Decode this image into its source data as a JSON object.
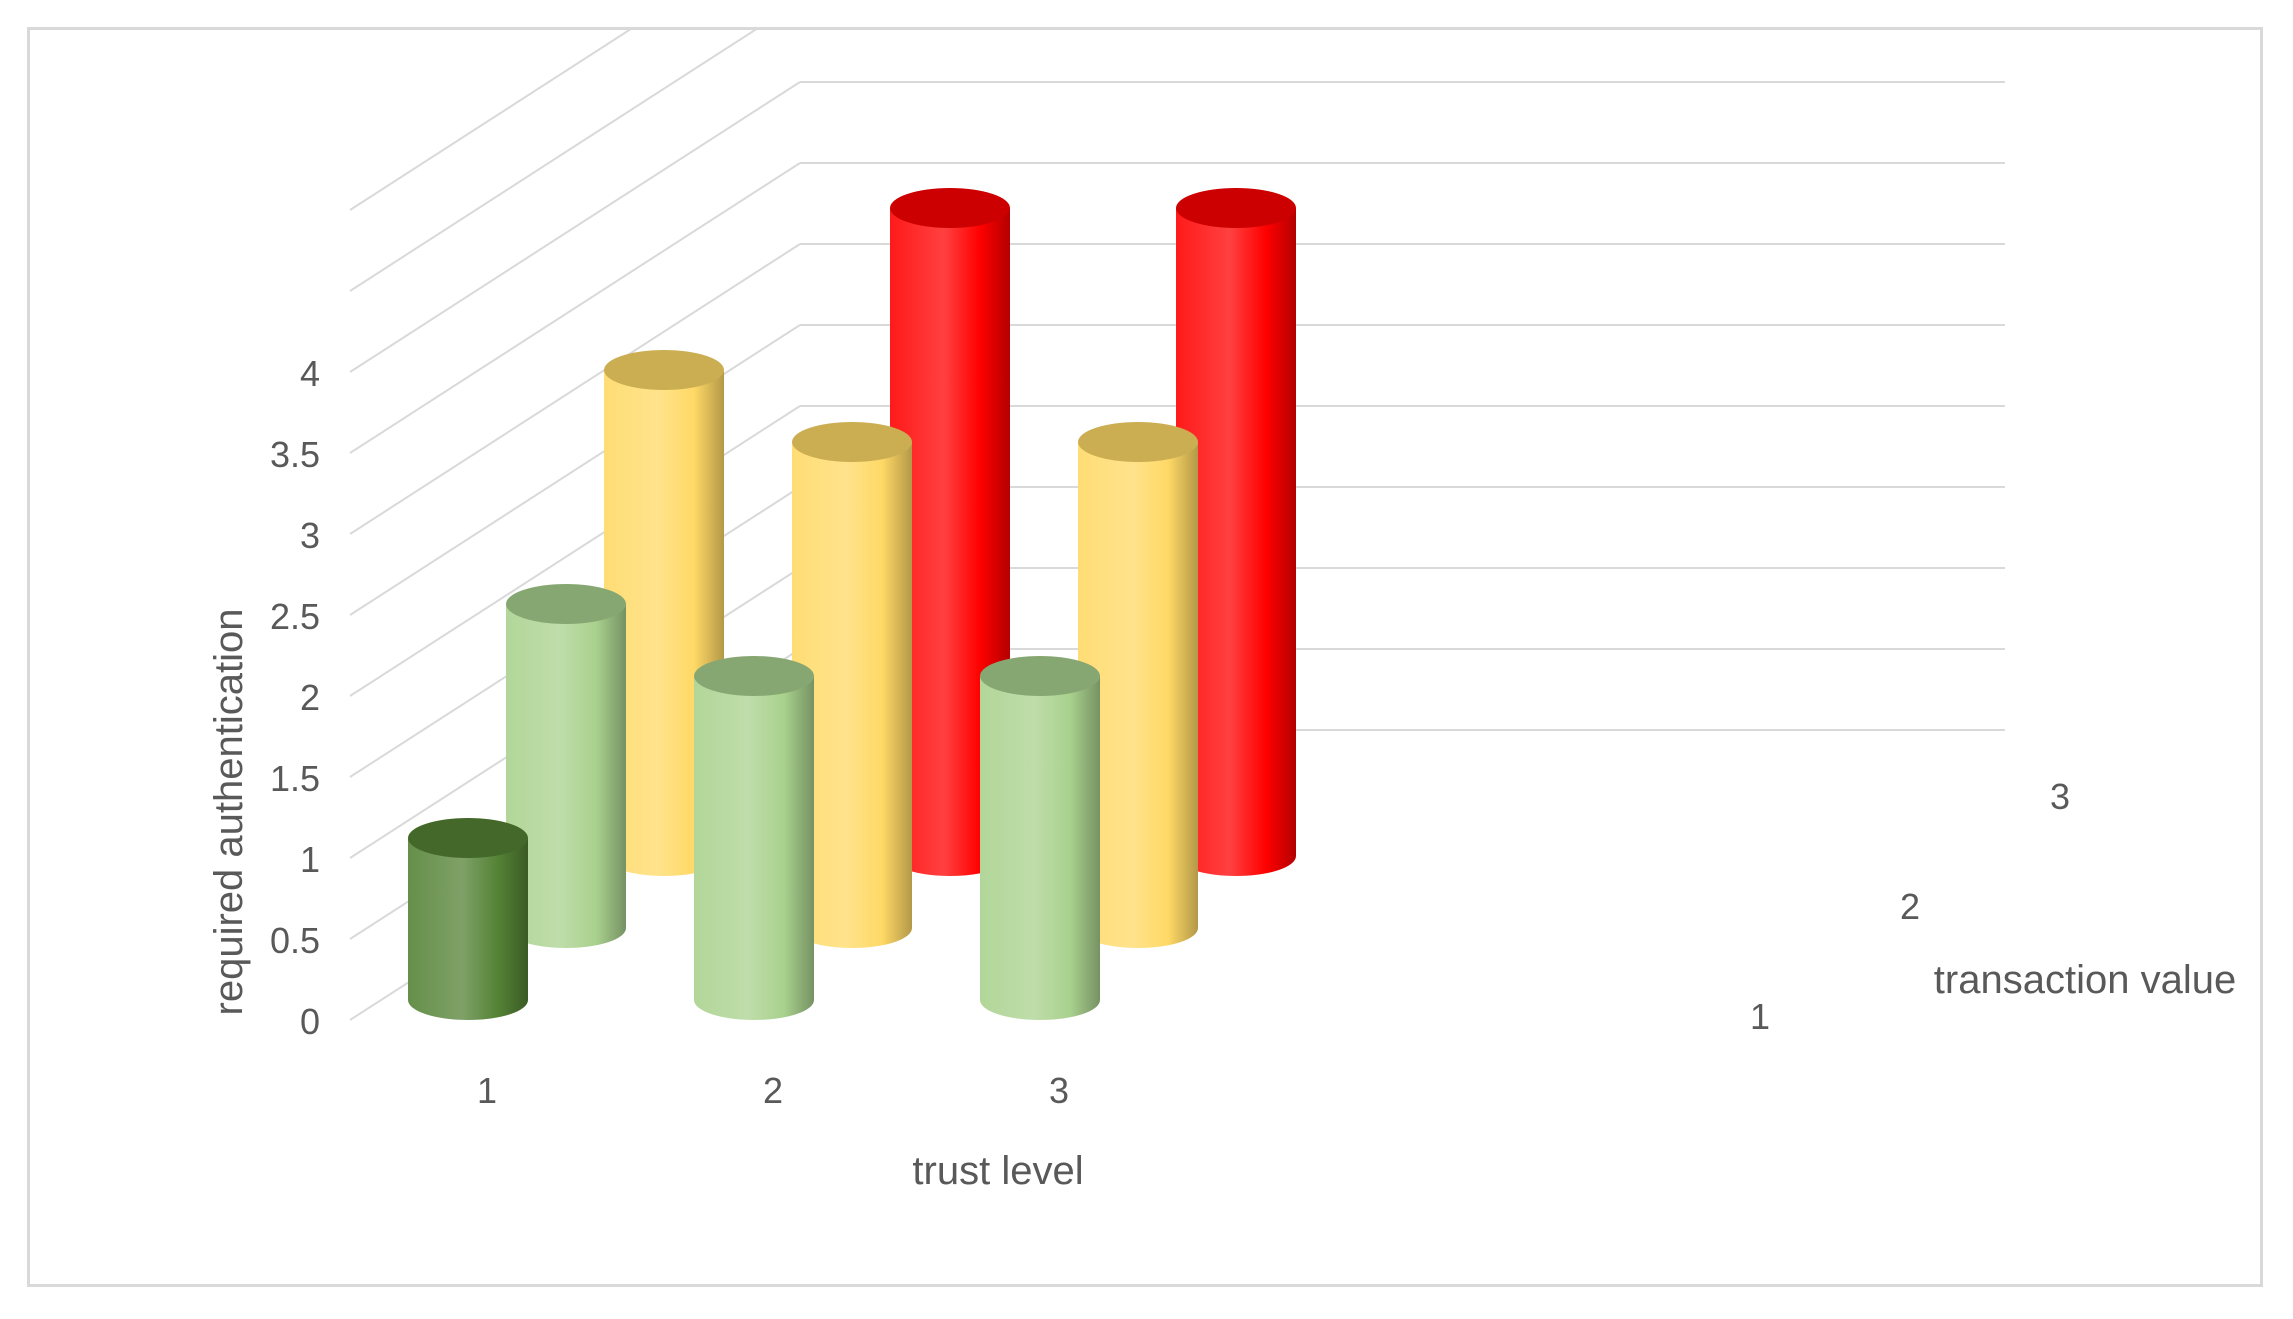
{
  "chart_data": {
    "type": "bar",
    "style": "3d-cylinder",
    "title": "",
    "xlabel": "trust level",
    "ylabel": "required authentication",
    "zlabel": "transaction value",
    "categories": [
      "1",
      "2",
      "3"
    ],
    "depth_categories": [
      "1",
      "2",
      "3"
    ],
    "y_ticks": [
      "0",
      "0.5",
      "1",
      "1.5",
      "2",
      "2.5",
      "3",
      "3.5",
      "4"
    ],
    "ylim": [
      0,
      4
    ],
    "grid": true,
    "legend": "none",
    "series": [
      {
        "values": [
          1,
          2,
          2
        ],
        "colors": [
          "#548235",
          "#a9d18e",
          "#a9d18e"
        ]
      },
      {
        "values": [
          2,
          3,
          3
        ],
        "colors": [
          "#a9d18e",
          "#ffd966",
          "#ffd966"
        ]
      },
      {
        "values": [
          3,
          4,
          4
        ],
        "colors": [
          "#ffd966",
          "#ff0000",
          "#ff0000"
        ]
      }
    ]
  }
}
